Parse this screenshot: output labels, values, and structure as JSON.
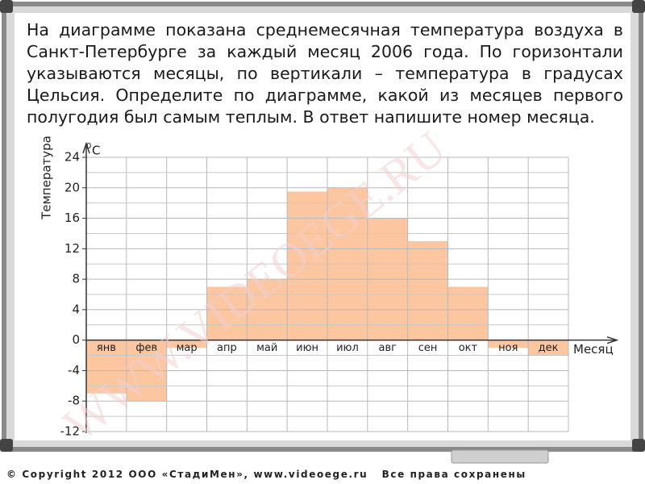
{
  "question": "На диаграмме показана среднемесячная температура воздуха в Санкт-Петербурге за каждый месяц 2006 года. По горизонтали указываются месяцы, по вертикали – температура в градусах Цельсия. Определите по диаграмме, какой из месяцев первого полугодия был самым теплым. В ответ напишите номер месяца.",
  "watermark": "WWW.VIDEOEGE.RU",
  "copyright": "© Copyright 2012 ООО «СтадиМен», www.videoege.ru   Все права сохранены",
  "chart_data": {
    "type": "bar",
    "ylabel": "Температура",
    "yunit_sup": "0",
    "yunit": "C",
    "xlabel": "Месяц",
    "categories": [
      "янв",
      "фев",
      "мар",
      "апр",
      "май",
      "июн",
      "июл",
      "авг",
      "сен",
      "окт",
      "ноя",
      "дек"
    ],
    "values": [
      -7,
      -8,
      -1,
      7,
      8,
      19.5,
      20,
      16,
      13,
      7,
      -1,
      -2
    ],
    "color": "#fbc6a0",
    "ylim": [
      -12,
      24
    ],
    "yticks": [
      -12,
      -8,
      -4,
      0,
      4,
      8,
      12,
      16,
      20,
      24
    ],
    "grid": true
  }
}
